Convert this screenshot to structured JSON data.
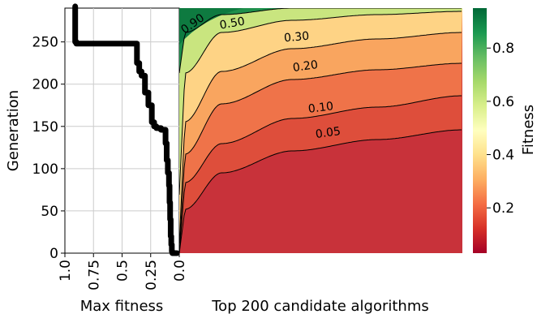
{
  "chart_data": [
    {
      "type": "line",
      "xlabel": "Max fitness",
      "ylabel": "Generation",
      "xlim": [
        1.0,
        0.0
      ],
      "ylim": [
        0,
        290
      ],
      "x_reversed": true,
      "grid": true,
      "xticks": [
        "1.0",
        "0.75",
        "0.5",
        "0.25",
        "0.0"
      ],
      "xtick_values": [
        1.0,
        0.75,
        0.5,
        0.25,
        0.0
      ],
      "yticks": [
        "0",
        "50",
        "100",
        "150",
        "200",
        "250"
      ],
      "ytick_values": [
        0,
        50,
        100,
        150,
        200,
        250
      ],
      "series": [
        {
          "points": [
            [
              0.02,
              0
            ],
            [
              0.06,
              2
            ],
            [
              0.065,
              10
            ],
            [
              0.07,
              20
            ],
            [
              0.075,
              40
            ],
            [
              0.08,
              60
            ],
            [
              0.085,
              80
            ],
            [
              0.09,
              95
            ],
            [
              0.1,
              110
            ],
            [
              0.11,
              130
            ],
            [
              0.12,
              146
            ],
            [
              0.16,
              148
            ],
            [
              0.2,
              150
            ],
            [
              0.22,
              155
            ],
            [
              0.24,
              175
            ],
            [
              0.27,
              190
            ],
            [
              0.3,
              210
            ],
            [
              0.33,
              215
            ],
            [
              0.35,
              225
            ],
            [
              0.37,
              240
            ],
            [
              0.37,
              248
            ],
            [
              0.9,
              250
            ],
            [
              0.91,
              260
            ],
            [
              0.91,
              280
            ],
            [
              0.91,
              292
            ]
          ]
        }
      ]
    },
    {
      "type": "heatmap",
      "xlabel": "Top 200 candidate algorithms",
      "colorbar_label": "Fitness",
      "colormap": "RdYlGn",
      "colorbar_range": [
        0.03,
        0.95
      ],
      "colorbar_ticks": [
        "0.2",
        "0.4",
        "0.6",
        "0.8"
      ],
      "colorbar_tick_values": [
        0.2,
        0.4,
        0.6,
        0.8
      ],
      "contour_labels": [
        "0.90",
        "0.50",
        "0.30",
        "0.20",
        "0.10",
        "0.05"
      ],
      "contour_levels": [
        0.9,
        0.5,
        0.3,
        0.2,
        0.1,
        0.05
      ],
      "colors": {
        "low": "#a50026",
        "mid": "#fefebd",
        "high": "#006837"
      }
    }
  ]
}
